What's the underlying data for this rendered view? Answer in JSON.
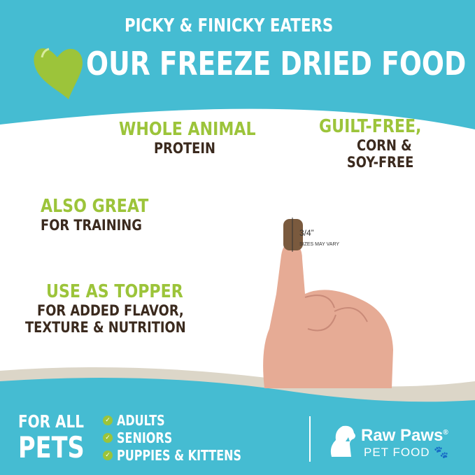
{
  "colors": {
    "teal": "#45bcd2",
    "green": "#9cc43a",
    "brown": "#3b2a1e",
    "cream": "#dcd6c8"
  },
  "header": {
    "subtitle": "PICKY & FINICKY EATERS",
    "title": "OUR FREEZE DRIED FOOD",
    "heart_icon": "heart-icon"
  },
  "features": [
    {
      "highlight": "WHOLE ANIMAL",
      "text": "PROTEIN"
    },
    {
      "highlight": "GUILT-FREE,",
      "text": "CORN &",
      "text2": "SOY-FREE"
    },
    {
      "highlight": "ALSO GREAT",
      "text": "FOR TRAINING"
    },
    {
      "highlight": "USE AS TOPPER",
      "text": "FOR ADDED FLAVOR,",
      "text2": "TEXTURE & NUTRITION"
    }
  ],
  "size": {
    "label": "3/4”",
    "note": "SIZES MAY VARY"
  },
  "footer": {
    "for_all": "FOR ALL",
    "pets": "PETS",
    "list": [
      "ADULTS",
      "SENIORS",
      "PUPPIES & KITTENS"
    ],
    "brand": {
      "name": "Raw Paws",
      "reg": "®",
      "sub": "PET FOOD"
    }
  }
}
